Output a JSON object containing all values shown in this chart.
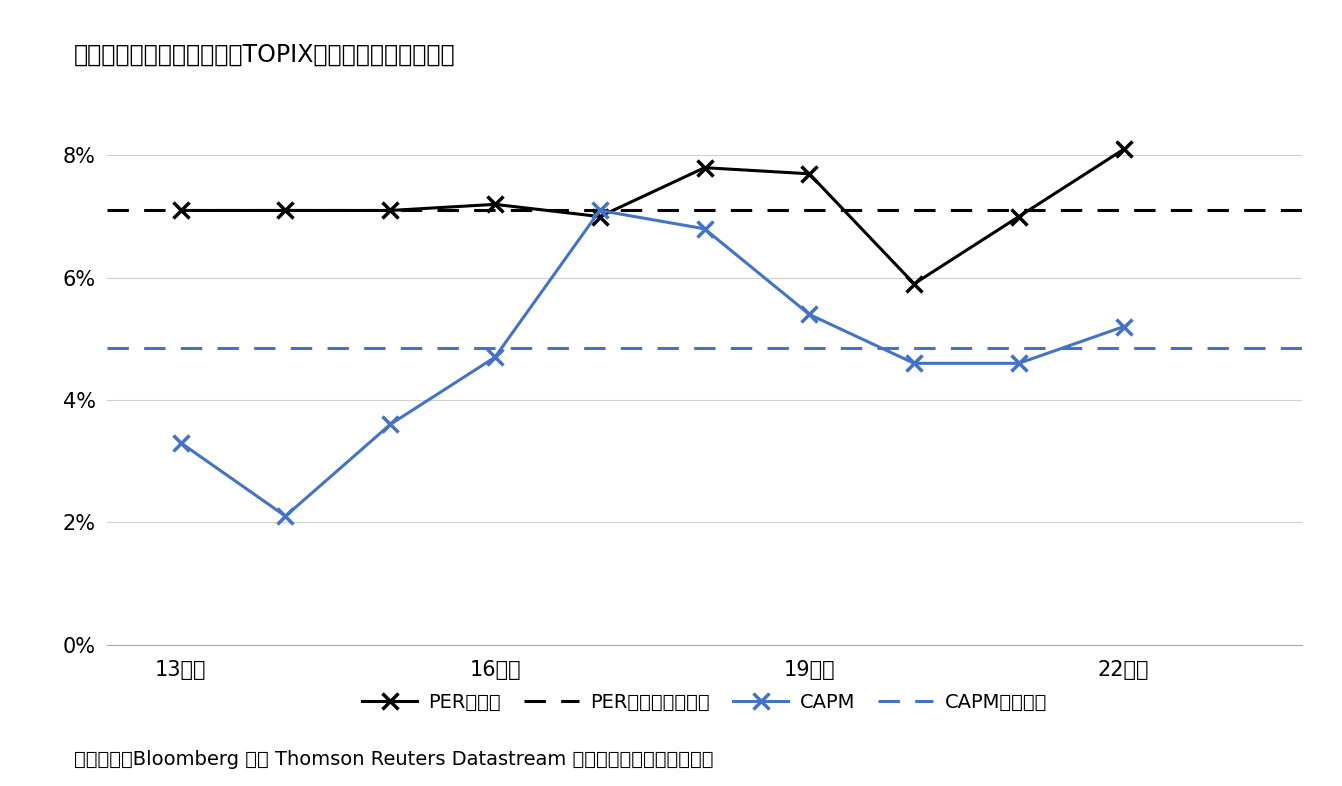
{
  "title": "》図表２》推計補法によるTOPIXの株主資本コストの差",
  "footnote": "（資料）　Bloomberg 及び Thomson Reuters Datastream から取得したデータを加工",
  "x_years": [
    13,
    14,
    15,
    16,
    17,
    18,
    19,
    20,
    21,
    22,
    23
  ],
  "x_tick_labels": [
    "13年度",
    "16年度",
    "19年度",
    "22年度"
  ],
  "x_tick_positions": [
    13,
    16,
    19,
    22
  ],
  "per_values": [
    0.071,
    0.071,
    0.071,
    0.072,
    0.07,
    0.078,
    0.077,
    0.059,
    0.07,
    0.081,
    null
  ],
  "capm_values": [
    0.033,
    0.021,
    0.036,
    0.047,
    0.071,
    0.068,
    0.054,
    0.046,
    0.046,
    0.052,
    null
  ],
  "per_avg": 0.071,
  "capm_avg": 0.0485,
  "per_color": "#000000",
  "capm_color": "#4472C4",
  "per_avg_color": "#000000",
  "capm_avg_color": "#4472C4",
  "ylim": [
    0,
    0.09
  ],
  "yticks": [
    0.0,
    0.02,
    0.04,
    0.06,
    0.08
  ],
  "ytick_labels": [
    "0%",
    "2%",
    "4%",
    "6%",
    "8%"
  ],
  "legend_items": [
    "PERの逆数",
    "PERの逆数（平均）",
    "CAPM",
    "CAPM（平均）"
  ],
  "background_color": "#ffffff",
  "grid_color": "#d0d0d0"
}
